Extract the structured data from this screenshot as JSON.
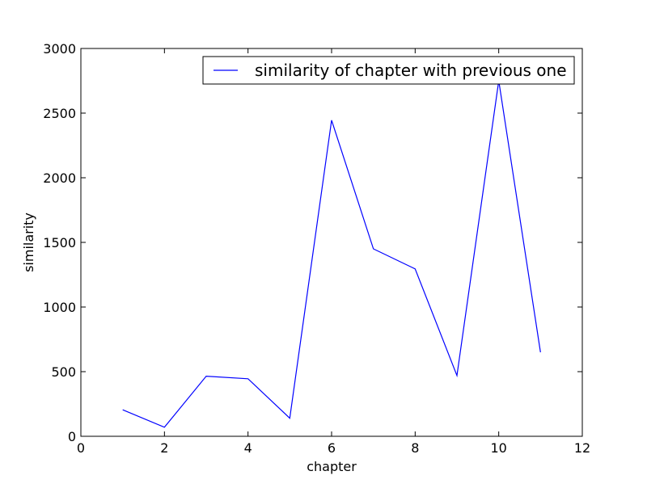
{
  "chart_data": {
    "type": "line",
    "title": "",
    "xlabel": "chapter",
    "ylabel": "similarity",
    "xlim": [
      0,
      12
    ],
    "ylim": [
      0,
      3000
    ],
    "xticks": [
      0,
      2,
      4,
      6,
      8,
      10,
      12
    ],
    "xtick_labels": [
      "0",
      "2",
      "4",
      "6",
      "8",
      "10",
      "12"
    ],
    "yticks": [
      0,
      500,
      1000,
      1500,
      2000,
      2500,
      3000
    ],
    "ytick_labels": [
      "0",
      "500",
      "1000",
      "1500",
      "2000",
      "2500",
      "3000"
    ],
    "grid": false,
    "legend_position": "top-right",
    "series": [
      {
        "name": "similarity of chapter with previous one",
        "color": "#0000ff",
        "x": [
          1,
          2,
          3,
          4,
          5,
          6,
          7,
          8,
          9,
          10,
          11
        ],
        "y": [
          205,
          70,
          465,
          445,
          140,
          2445,
          1450,
          1295,
          470,
          2750,
          650
        ]
      }
    ]
  }
}
